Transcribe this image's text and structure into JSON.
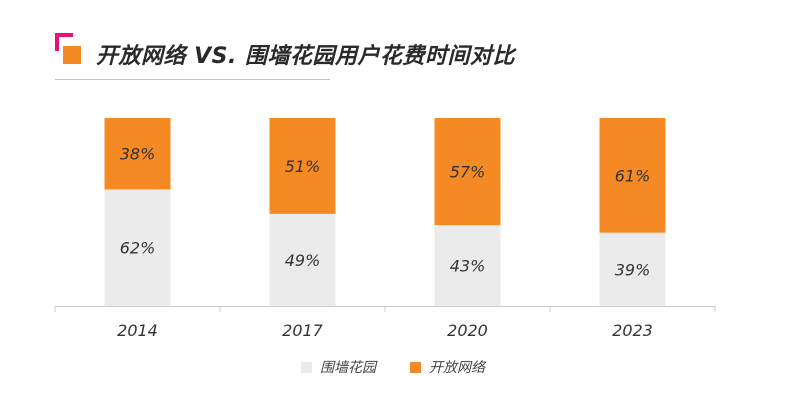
{
  "title": "开放网络 VS. 围墙花园用户花费时间对比",
  "colors": {
    "accent_pink": "#e8107a",
    "accent_orange": "#f58a24",
    "walled_garden": "#ebebeb",
    "open_web": "#f58a24"
  },
  "chart_data": {
    "type": "bar",
    "stacked": true,
    "normalized": "percent",
    "categories": [
      "2014",
      "2017",
      "2020",
      "2023"
    ],
    "series": [
      {
        "name": "围墙花园",
        "values": [
          62,
          49,
          43,
          39
        ],
        "labels": [
          "62%",
          "49%",
          "43%",
          "39%"
        ],
        "color": "#ebebeb"
      },
      {
        "name": "开放网络",
        "values": [
          38,
          51,
          57,
          61
        ],
        "labels": [
          "38%",
          "51%",
          "57%",
          "61%"
        ],
        "color": "#f58a24"
      }
    ],
    "ylim": [
      0,
      100
    ],
    "grid": false,
    "legend_position": "bottom"
  }
}
